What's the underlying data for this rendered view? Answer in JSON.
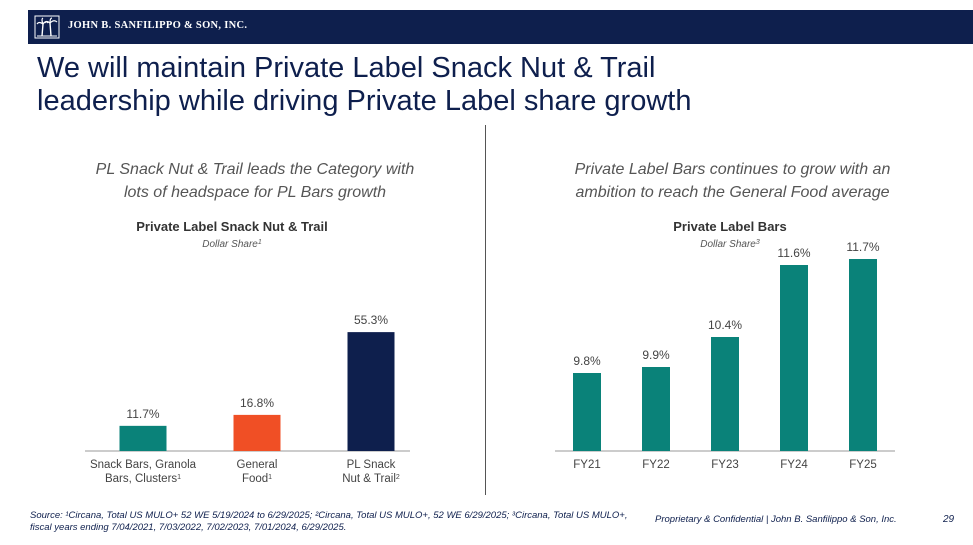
{
  "header": {
    "company": "JOHN B. SANFILIPPO & SON, INC.",
    "logo_icon": "palm-trees-logo-icon"
  },
  "title_lines": [
    "We will maintain Private Label Snack Nut & Trail",
    "leadership while driving Private Label share growth"
  ],
  "left_panel": {
    "subhead_lines": [
      "PL Snack Nut & Trail leads the Category with",
      "lots of headspace for PL Bars growth"
    ]
  },
  "right_panel": {
    "subhead_lines": [
      "Private Label Bars continues to grow with an",
      "ambition to reach the General Food average"
    ]
  },
  "chart_data": [
    {
      "type": "bar",
      "title": "Private Label Snack Nut & Trail",
      "subtitle": "Dollar Share",
      "subtitle_sup": "1",
      "categories": [
        {
          "lines": [
            "Snack Bars, Granola",
            "Bars, Clusters"
          ],
          "sup": "1"
        },
        {
          "lines": [
            "General",
            "Food"
          ],
          "sup": "1"
        },
        {
          "lines": [
            "PL Snack",
            "Nut & Trail"
          ],
          "sup": "2"
        }
      ],
      "values": [
        11.7,
        16.8,
        55.3
      ],
      "value_labels": [
        "11.7%",
        "16.8%",
        "55.3%"
      ],
      "colors": [
        "#0a8279",
        "#f04f25",
        "#0e1f4d"
      ],
      "unit": "%",
      "ylim": [
        0,
        60
      ]
    },
    {
      "type": "bar",
      "title": "Private Label Bars",
      "subtitle": "Dollar Share",
      "subtitle_sup": "3",
      "categories": [
        {
          "lines": [
            "FY21"
          ]
        },
        {
          "lines": [
            "FY22"
          ]
        },
        {
          "lines": [
            "FY23"
          ]
        },
        {
          "lines": [
            "FY24"
          ]
        },
        {
          "lines": [
            "FY25"
          ]
        }
      ],
      "values": [
        9.8,
        9.9,
        10.4,
        11.6,
        11.7
      ],
      "value_labels": [
        "9.8%",
        "9.9%",
        "10.4%",
        "11.6%",
        "11.7%"
      ],
      "colors": [
        "#0a8279",
        "#0a8279",
        "#0a8279",
        "#0a8279",
        "#0a8279"
      ],
      "unit": "%",
      "ylim": [
        8.5,
        11.7
      ]
    }
  ],
  "footer": {
    "source": "Source: ¹Circana, Total US MULO+ 52 WE 5/19/2024 to 6/29/2025; ²Circana, Total US MULO+, 52 WE 6/29/2025; ³Circana, Total US MULO+, fiscal years ending 7/04/2021, 7/03/2022, 7/02/2023, 7/01/2024, 6/29/2025.",
    "confidential": "Proprietary & Confidential | John B. Sanfilippo & Son, Inc.",
    "page_number": "29"
  }
}
